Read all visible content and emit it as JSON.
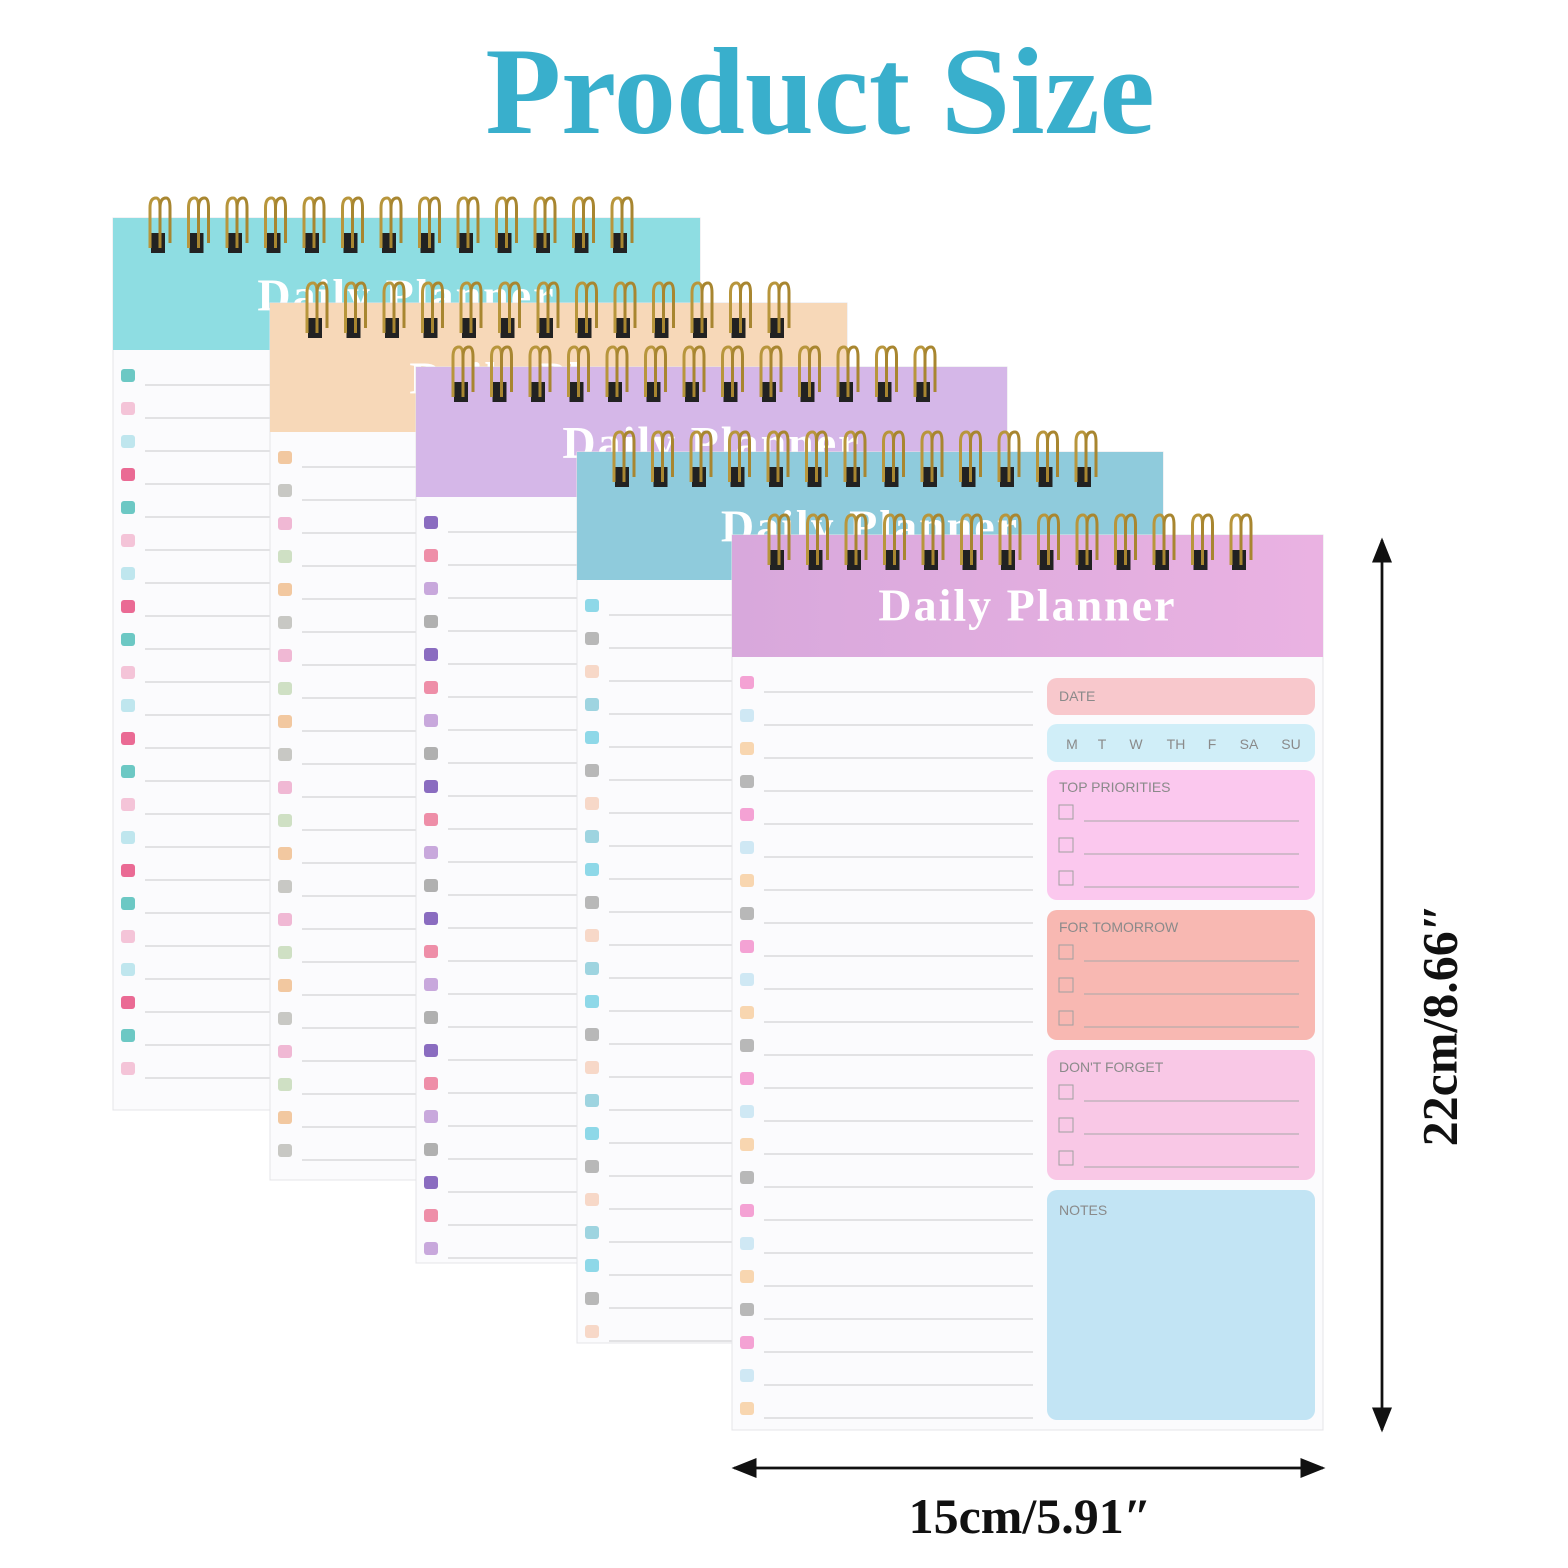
{
  "header": {
    "title": "Product Size"
  },
  "planner": {
    "title": "Daily Planner",
    "date_label": "DATE",
    "weekdays": [
      "M",
      "T",
      "W",
      "TH",
      "F",
      "SA",
      "SU"
    ],
    "sections": [
      "TOP PRIORITIES",
      "FOR TOMORROW",
      "DON'T FORGET"
    ],
    "notes_label": "NOTES"
  },
  "dimensions": {
    "height": "22cm/8.66″",
    "width": "15cm/5.91″"
  }
}
